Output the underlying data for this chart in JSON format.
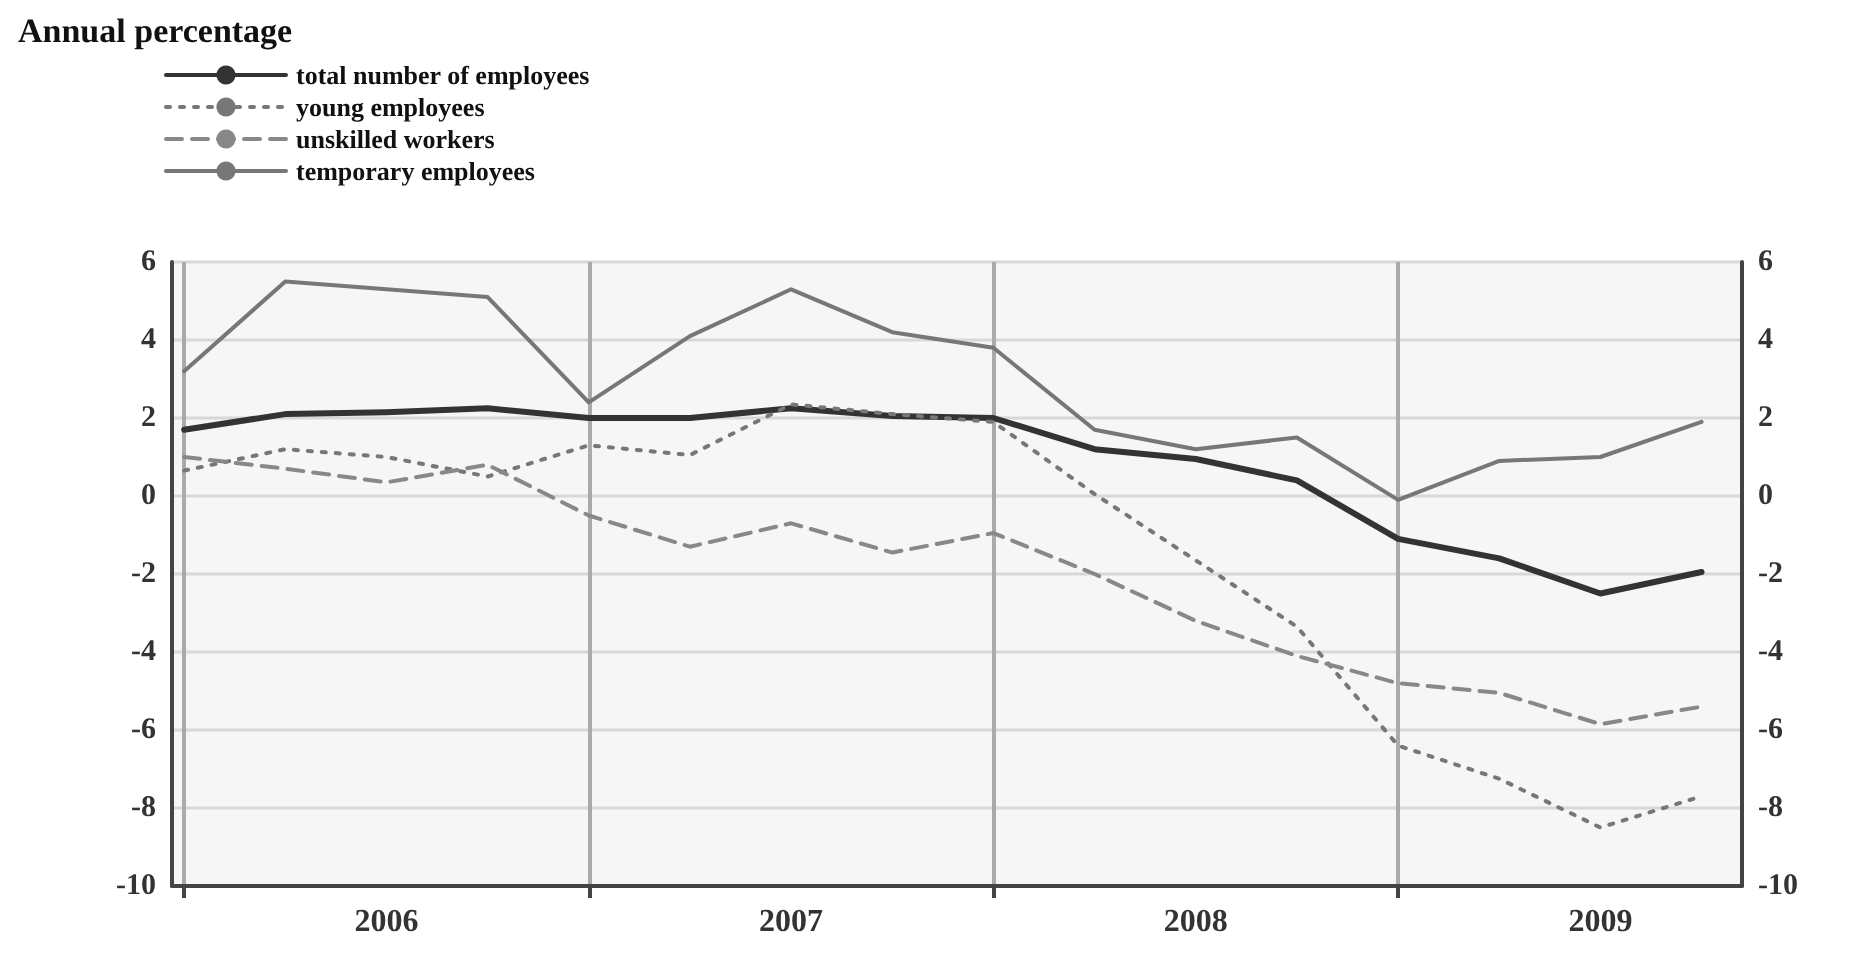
{
  "chart_data": {
    "type": "line",
    "title": "Annual percentage",
    "x": [
      2006,
      2006.25,
      2006.5,
      2006.75,
      2007,
      2007.25,
      2007.5,
      2007.75,
      2008,
      2008.25,
      2008.5,
      2008.75,
      2009,
      2009.25,
      2009.5,
      2009.75
    ],
    "xlim": [
      2005.97,
      2009.85
    ],
    "xticks": [
      {
        "value": 2006,
        "label": null
      },
      {
        "value": 2006.5,
        "label": "2006"
      },
      {
        "value": 2007,
        "label": null
      },
      {
        "value": 2007.5,
        "label": "2007"
      },
      {
        "value": 2008,
        "label": null
      },
      {
        "value": 2008.5,
        "label": "2008"
      },
      {
        "value": 2009,
        "label": null
      },
      {
        "value": 2009.5,
        "label": "2009"
      }
    ],
    "ylim": [
      -10,
      6
    ],
    "yticks": [
      -10,
      -8,
      -6,
      -4,
      -2,
      0,
      2,
      4,
      6
    ],
    "y2lim": [
      -10,
      6
    ],
    "y2ticks": [
      -10,
      -8,
      -6,
      -4,
      -2,
      0,
      2,
      4,
      6
    ],
    "grid": true,
    "legend": "top left",
    "marker": "none",
    "series": [
      {
        "name": "total number of employees",
        "color": "#333333",
        "line_style": "solid",
        "values": [
          1.7,
          2.1,
          2.15,
          2.25,
          2.0,
          2.0,
          2.25,
          2.05,
          2.0,
          1.2,
          0.95,
          0.4,
          -1.1,
          -1.6,
          -2.5,
          -1.95
        ]
      },
      {
        "name": "young employees",
        "color": "#777777",
        "line_style": "dotted",
        "values": [
          0.65,
          1.2,
          1.0,
          0.5,
          1.3,
          1.05,
          2.35,
          2.1,
          1.9,
          0.05,
          -1.65,
          -3.35,
          -6.4,
          -7.25,
          -8.5,
          -7.7
        ]
      },
      {
        "name": "unskilled workers",
        "color": "#888888",
        "line_style": "dashed",
        "values": [
          1.0,
          0.7,
          0.35,
          0.8,
          -0.5,
          -1.3,
          -0.7,
          -1.45,
          -0.95,
          -2.0,
          -3.2,
          -4.1,
          -4.8,
          -5.05,
          -5.85,
          -5.4
        ]
      },
      {
        "name": "temporary employees",
        "color": "#777777",
        "line_style": "solid",
        "values": [
          3.2,
          5.5,
          5.3,
          5.1,
          2.4,
          4.1,
          5.3,
          4.2,
          3.8,
          1.7,
          1.2,
          1.5,
          -0.1,
          0.9,
          1.0,
          1.9
        ]
      }
    ]
  }
}
